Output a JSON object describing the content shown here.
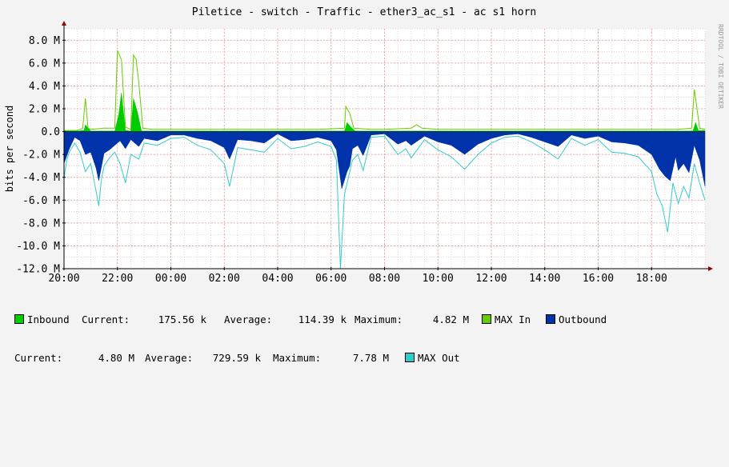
{
  "title": "Piletice - switch - Traffic - ether3_ac_s1 - ac s1 horn",
  "watermark": "RRDTOOL / TOBI OETIKER",
  "colors": {
    "background": "#f3f3f3",
    "plot_bg": "#ffffff",
    "inbound": "#00cc00",
    "max_in": "#66cc00",
    "outbound": "#0033aa",
    "max_out": "#33cccc",
    "grid": "#e6b3b3"
  },
  "chart_data": {
    "type": "area",
    "title": "Piletice - switch - Traffic - ether3_ac_s1 - ac s1 horn",
    "xlabel": "",
    "ylabel": "bits per second",
    "ylim": [
      -12.0,
      9.0
    ],
    "yunit": "M",
    "yticks": [
      8.0,
      6.0,
      4.0,
      2.0,
      0.0,
      -2.0,
      -4.0,
      -6.0,
      -8.0,
      -10.0,
      -12.0
    ],
    "ytick_labels": [
      "8.0 M",
      "6.0 M",
      "4.0 M",
      "2.0 M",
      "0.0",
      "-2.0 M",
      "-4.0 M",
      "-6.0 M",
      "-8.0 M",
      "-10.0 M",
      "-12.0 M"
    ],
    "xticks": [
      "20:00",
      "22:00",
      "00:00",
      "02:00",
      "04:00",
      "06:00",
      "08:00",
      "10:00",
      "12:00",
      "14:00",
      "16:00",
      "18:00"
    ],
    "x_range_hours": [
      20,
      44
    ],
    "grid": true,
    "series": [
      {
        "name": "Inbound",
        "kind": "area",
        "color": "#00cc00",
        "x": [
          20,
          20.5,
          20.75,
          20.8,
          21,
          21.5,
          21.9,
          22.05,
          22.15,
          22.3,
          22.5,
          22.6,
          22.75,
          22.9,
          23.2,
          24,
          26,
          28,
          29.5,
          30.5,
          30.6,
          30.7,
          30.9,
          31.5,
          33,
          34,
          36,
          38,
          40,
          42,
          43,
          43.55,
          43.65,
          43.75,
          44
        ],
        "values": [
          0.05,
          0.05,
          0.1,
          0.6,
          0.05,
          0.05,
          0.05,
          1.5,
          3.4,
          0.1,
          0.05,
          2.9,
          1.7,
          0.05,
          0.05,
          0.05,
          0.05,
          0.05,
          0.05,
          0.05,
          0.8,
          0.5,
          0.05,
          0.05,
          0.05,
          0.05,
          0.05,
          0.05,
          0.05,
          0.05,
          0.05,
          0.05,
          0.8,
          0.1,
          0.1
        ]
      },
      {
        "name": "MAX In",
        "kind": "line",
        "color": "#66cc00",
        "x": [
          20,
          20.5,
          20.7,
          20.8,
          20.9,
          21,
          21.5,
          21.9,
          22,
          22.15,
          22.3,
          22.5,
          22.6,
          22.7,
          22.8,
          22.95,
          23.3,
          24,
          26,
          28,
          29.5,
          30.5,
          30.55,
          30.7,
          30.85,
          31.5,
          32,
          33,
          33.2,
          33.4,
          34,
          36,
          38,
          40,
          42,
          43,
          43.5,
          43.6,
          43.7,
          43.8,
          44
        ],
        "values": [
          0.1,
          0.1,
          0.3,
          2.9,
          0.3,
          0.2,
          0.3,
          0.3,
          7.1,
          6.3,
          0.4,
          0.2,
          6.7,
          6.3,
          4.3,
          0.3,
          0.2,
          0.2,
          0.2,
          0.2,
          0.2,
          0.3,
          2.2,
          1.6,
          0.3,
          0.2,
          0.2,
          0.3,
          0.6,
          0.3,
          0.2,
          0.2,
          0.2,
          0.2,
          0.2,
          0.2,
          0.3,
          3.7,
          2.0,
          0.3,
          0.2
        ]
      },
      {
        "name": "Outbound",
        "kind": "area",
        "color": "#0033aa",
        "x": [
          20,
          20.2,
          20.4,
          20.6,
          20.8,
          21,
          21.1,
          21.2,
          21.3,
          21.5,
          21.7,
          21.9,
          22.1,
          22.3,
          22.5,
          22.8,
          23,
          23.5,
          24,
          24.5,
          25,
          25.5,
          26,
          26.2,
          26.5,
          27,
          27.5,
          28,
          28.5,
          29,
          29.5,
          30,
          30.2,
          30.4,
          30.6,
          30.7,
          30.8,
          31,
          31.2,
          31.5,
          32,
          32.5,
          32.8,
          33,
          33.5,
          34,
          34.5,
          35,
          35.5,
          36,
          36.5,
          37,
          37.5,
          38,
          38.5,
          39,
          39.5,
          40,
          40.5,
          41,
          41.5,
          42,
          42.3,
          42.5,
          42.7,
          42.9,
          43,
          43.2,
          43.4,
          43.6,
          43.8,
          44
        ],
        "values": [
          -2.8,
          -1.5,
          -0.5,
          -0.8,
          -2.0,
          -1.8,
          -2.5,
          -3.2,
          -4.3,
          -1.9,
          -1.6,
          -1.2,
          -0.8,
          -1.5,
          -0.7,
          -1.3,
          -0.6,
          -0.8,
          -0.3,
          -0.3,
          -0.6,
          -0.8,
          -1.4,
          -2.4,
          -0.7,
          -0.8,
          -1.0,
          -0.2,
          -0.8,
          -0.7,
          -0.5,
          -0.8,
          -1.6,
          -5.0,
          -3.5,
          -3.0,
          -1.5,
          -1.2,
          -2.1,
          -0.3,
          -0.2,
          -1.1,
          -0.8,
          -1.2,
          -0.4,
          -0.9,
          -1.2,
          -2.0,
          -1.1,
          -0.6,
          -0.3,
          -0.2,
          -0.5,
          -0.9,
          -1.3,
          -0.3,
          -0.6,
          -0.4,
          -0.9,
          -1.0,
          -1.2,
          -2.0,
          -3.3,
          -3.9,
          -4.3,
          -2.2,
          -3.4,
          -2.8,
          -3.6,
          -1.2,
          -2.5,
          -4.8
        ]
      },
      {
        "name": "MAX Out",
        "kind": "line",
        "color": "#33cccc",
        "x": [
          20,
          20.1,
          20.2,
          20.4,
          20.6,
          20.8,
          21,
          21.1,
          21.2,
          21.3,
          21.4,
          21.5,
          21.7,
          21.9,
          22.1,
          22.3,
          22.5,
          22.8,
          23,
          23.5,
          24,
          24.5,
          25,
          25.5,
          26,
          26.2,
          26.5,
          27,
          27.5,
          28,
          28.5,
          29,
          29.5,
          30,
          30.2,
          30.35,
          30.5,
          30.6,
          30.8,
          31,
          31.2,
          31.5,
          32,
          32.5,
          32.8,
          33,
          33.5,
          34,
          34.5,
          35,
          35.5,
          36,
          36.5,
          37,
          37.5,
          38,
          38.5,
          39,
          39.5,
          40,
          40.5,
          41,
          41.5,
          42,
          42.2,
          42.4,
          42.6,
          42.8,
          43,
          43.2,
          43.4,
          43.6,
          43.8,
          44
        ],
        "values": [
          -4.1,
          -2.5,
          -1.8,
          -1.0,
          -1.8,
          -3.5,
          -2.8,
          -4.0,
          -5.2,
          -6.5,
          -4.2,
          -3.0,
          -2.3,
          -1.8,
          -2.8,
          -4.5,
          -2.0,
          -2.4,
          -1.0,
          -1.2,
          -0.6,
          -0.5,
          -1.2,
          -1.6,
          -2.8,
          -4.8,
          -1.4,
          -1.6,
          -1.8,
          -0.6,
          -1.5,
          -1.3,
          -0.9,
          -1.3,
          -2.5,
          -12.0,
          -5.5,
          -4.5,
          -2.5,
          -2.0,
          -3.4,
          -0.5,
          -0.4,
          -2.0,
          -1.5,
          -2.3,
          -0.7,
          -1.6,
          -2.2,
          -3.3,
          -2.0,
          -1.0,
          -0.5,
          -0.4,
          -0.9,
          -1.6,
          -2.4,
          -0.6,
          -1.2,
          -0.7,
          -1.8,
          -1.9,
          -2.2,
          -3.5,
          -5.5,
          -6.5,
          -8.8,
          -4.5,
          -6.3,
          -4.8,
          -5.8,
          -2.8,
          -4.5,
          -6.0
        ]
      }
    ]
  },
  "legend": {
    "inbound_label": "Inbound",
    "in_current_label": "Current:",
    "in_current": "175.56 k",
    "in_average_label": "Average:",
    "in_average": "114.39 k",
    "in_max_label": "Maximum:",
    "in_max": "4.82 M",
    "max_in_label": "MAX In",
    "outbound_label": "Outbound",
    "out_current_label": "Current:",
    "out_current": "4.80 M",
    "out_average_label": "Average:",
    "out_average": "729.59 k",
    "out_max_label": "Maximum:",
    "out_max": "7.78 M",
    "max_out_label": "MAX Out"
  }
}
